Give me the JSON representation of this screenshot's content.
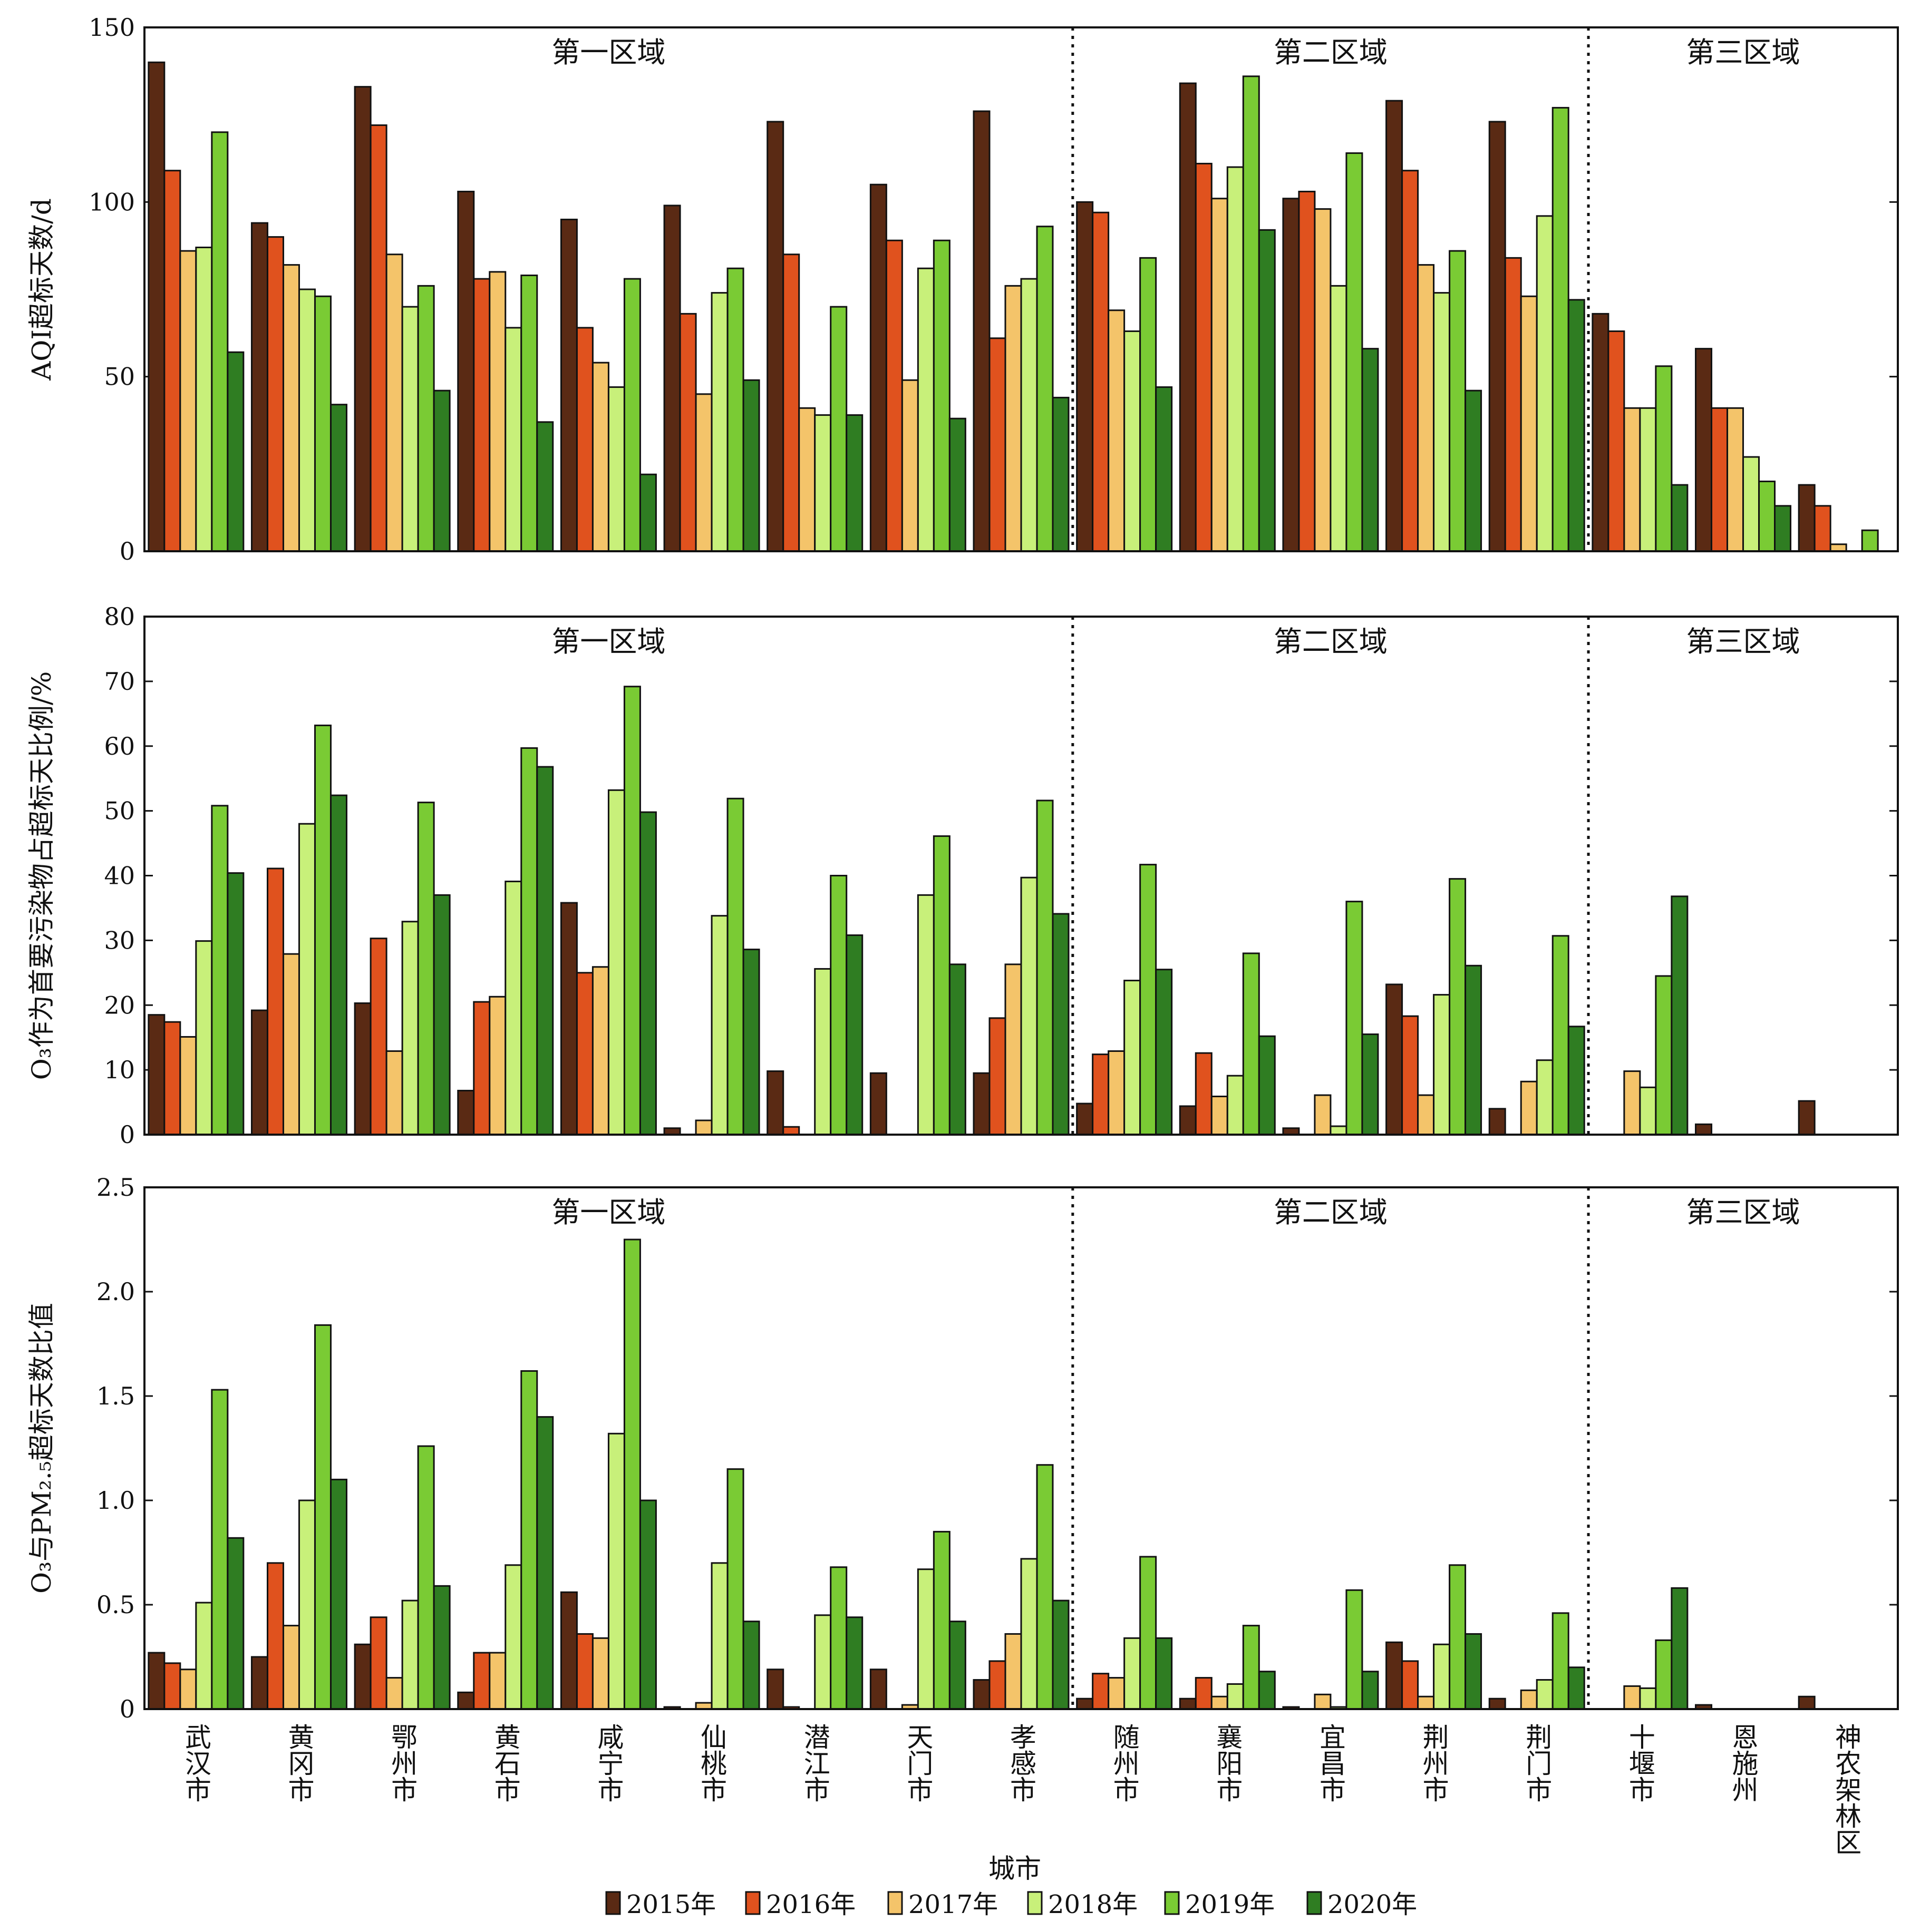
{
  "chart_data": {
    "type": "bar",
    "xlabel": "城市",
    "categories": [
      "武汉市",
      "黄冈市",
      "鄂州市",
      "黄石市",
      "咸宁市",
      "仙桃市",
      "潜江市",
      "天门市",
      "孝感市",
      "随州市",
      "襄阳市",
      "宜昌市",
      "荆州市",
      "荆门市",
      "十堰市",
      "恩施州",
      "神农架林区"
    ],
    "legend": {
      "placement": "bottom",
      "entries": [
        "2015年",
        "2016年",
        "2017年",
        "2018年",
        "2019年",
        "2020年"
      ]
    },
    "colors": [
      "#5a2a14",
      "#e0521e",
      "#f4c46a",
      "#c8f07a",
      "#7acb34",
      "#2f7d22"
    ],
    "regions": [
      {
        "label": "第一区域",
        "start": 0,
        "end": 8
      },
      {
        "label": "第二区域",
        "start": 9,
        "end": 13
      },
      {
        "label": "第三区域",
        "start": 14,
        "end": 16
      }
    ],
    "panels": [
      {
        "ylabel": "AQI超标天数/d",
        "ylim": [
          0,
          150
        ],
        "yticks": [
          0,
          50,
          100,
          150
        ],
        "tick_labels": [
          "0",
          "50",
          "100",
          "150"
        ],
        "series": [
          {
            "name": "2015年",
            "values": [
              140,
              94,
              133,
              103,
              95,
              99,
              123,
              105,
              126,
              100,
              134,
              101,
              129,
              123,
              68,
              58,
              19
            ]
          },
          {
            "name": "2016年",
            "values": [
              109,
              90,
              122,
              78,
              64,
              68,
              85,
              89,
              61,
              97,
              111,
              103,
              109,
              84,
              63,
              41,
              13
            ]
          },
          {
            "name": "2017年",
            "values": [
              86,
              82,
              85,
              80,
              54,
              45,
              41,
              49,
              76,
              69,
              101,
              98,
              82,
              73,
              41,
              41,
              2
            ]
          },
          {
            "name": "2018年",
            "values": [
              87,
              75,
              70,
              64,
              47,
              74,
              39,
              81,
              78,
              63,
              110,
              76,
              74,
              96,
              41,
              27,
              0
            ]
          },
          {
            "name": "2019年",
            "values": [
              120,
              73,
              76,
              79,
              78,
              81,
              70,
              89,
              93,
              84,
              136,
              114,
              86,
              127,
              53,
              20,
              6
            ]
          },
          {
            "name": "2020年",
            "values": [
              57,
              42,
              46,
              37,
              22,
              49,
              39,
              38,
              44,
              47,
              92,
              58,
              46,
              72,
              19,
              13,
              0
            ]
          }
        ]
      },
      {
        "ylabel": "O₃作为首要污染物占超标天比例/%",
        "ylim": [
          0,
          80
        ],
        "yticks": [
          0,
          10,
          20,
          30,
          40,
          50,
          60,
          70,
          80
        ],
        "tick_labels": [
          "0",
          "10",
          "20",
          "30",
          "40",
          "50",
          "60",
          "70",
          "80"
        ],
        "series": [
          {
            "name": "2015年",
            "values": [
              18.5,
              19.2,
              20.3,
              6.8,
              35.8,
              1.0,
              9.8,
              9.5,
              9.5,
              4.8,
              4.4,
              1.0,
              23.2,
              4.0,
              0,
              1.6,
              5.2
            ]
          },
          {
            "name": "2016年",
            "values": [
              17.4,
              41.1,
              30.3,
              20.5,
              25.0,
              0,
              1.2,
              0,
              18.0,
              12.4,
              12.6,
              0,
              18.3,
              0,
              0,
              0,
              0
            ]
          },
          {
            "name": "2017年",
            "values": [
              15.1,
              27.9,
              12.9,
              21.3,
              25.9,
              2.2,
              0,
              0,
              26.3,
              12.9,
              5.9,
              6.1,
              6.1,
              8.2,
              9.8,
              0,
              0
            ]
          },
          {
            "name": "2018年",
            "values": [
              29.9,
              48.0,
              32.9,
              39.1,
              53.2,
              33.8,
              25.6,
              37.0,
              39.7,
              23.8,
              9.1,
              1.3,
              21.6,
              11.5,
              7.3,
              0,
              0
            ]
          },
          {
            "name": "2019年",
            "values": [
              50.8,
              63.2,
              51.3,
              59.7,
              69.2,
              51.9,
              40.0,
              46.1,
              51.6,
              41.7,
              28.0,
              36.0,
              39.5,
              30.7,
              24.5,
              0,
              0
            ]
          },
          {
            "name": "2020年",
            "values": [
              40.4,
              52.4,
              37.0,
              56.8,
              49.8,
              28.6,
              30.8,
              26.3,
              34.1,
              25.5,
              15.2,
              15.5,
              26.1,
              16.7,
              36.8,
              0,
              0
            ]
          }
        ]
      },
      {
        "ylabel": "O₃与PM₂.₅超标天数比值",
        "ylim": [
          0,
          2.5
        ],
        "yticks": [
          0,
          0.5,
          1.0,
          1.5,
          2.0,
          2.5
        ],
        "tick_labels": [
          "0",
          "0.5",
          "1.0",
          "1.5",
          "2.0",
          "2.5"
        ],
        "series": [
          {
            "name": "2015年",
            "values": [
              0.27,
              0.25,
              0.31,
              0.08,
              0.56,
              0.01,
              0.19,
              0.19,
              0.14,
              0.05,
              0.05,
              0.01,
              0.32,
              0.05,
              0,
              0.02,
              0.06
            ]
          },
          {
            "name": "2016年",
            "values": [
              0.22,
              0.7,
              0.44,
              0.27,
              0.36,
              0,
              0.01,
              0,
              0.23,
              0.17,
              0.15,
              0,
              0.23,
              0,
              0,
              0,
              0
            ]
          },
          {
            "name": "2017年",
            "values": [
              0.19,
              0.4,
              0.15,
              0.27,
              0.34,
              0.03,
              0,
              0.02,
              0.36,
              0.15,
              0.06,
              0.07,
              0.06,
              0.09,
              0.11,
              0,
              0
            ]
          },
          {
            "name": "2018年",
            "values": [
              0.51,
              1.0,
              0.52,
              0.69,
              1.32,
              0.7,
              0.45,
              0.67,
              0.72,
              0.34,
              0.12,
              0.01,
              0.31,
              0.14,
              0.1,
              0,
              0
            ]
          },
          {
            "name": "2019年",
            "values": [
              1.53,
              1.84,
              1.26,
              1.62,
              2.25,
              1.15,
              0.68,
              0.85,
              1.17,
              0.73,
              0.4,
              0.57,
              0.69,
              0.46,
              0.33,
              0,
              0
            ]
          },
          {
            "name": "2020年",
            "values": [
              0.82,
              1.1,
              0.59,
              1.4,
              1.0,
              0.42,
              0.44,
              0.42,
              0.52,
              0.34,
              0.18,
              0.18,
              0.36,
              0.2,
              0.58,
              0,
              0
            ]
          }
        ]
      }
    ]
  }
}
